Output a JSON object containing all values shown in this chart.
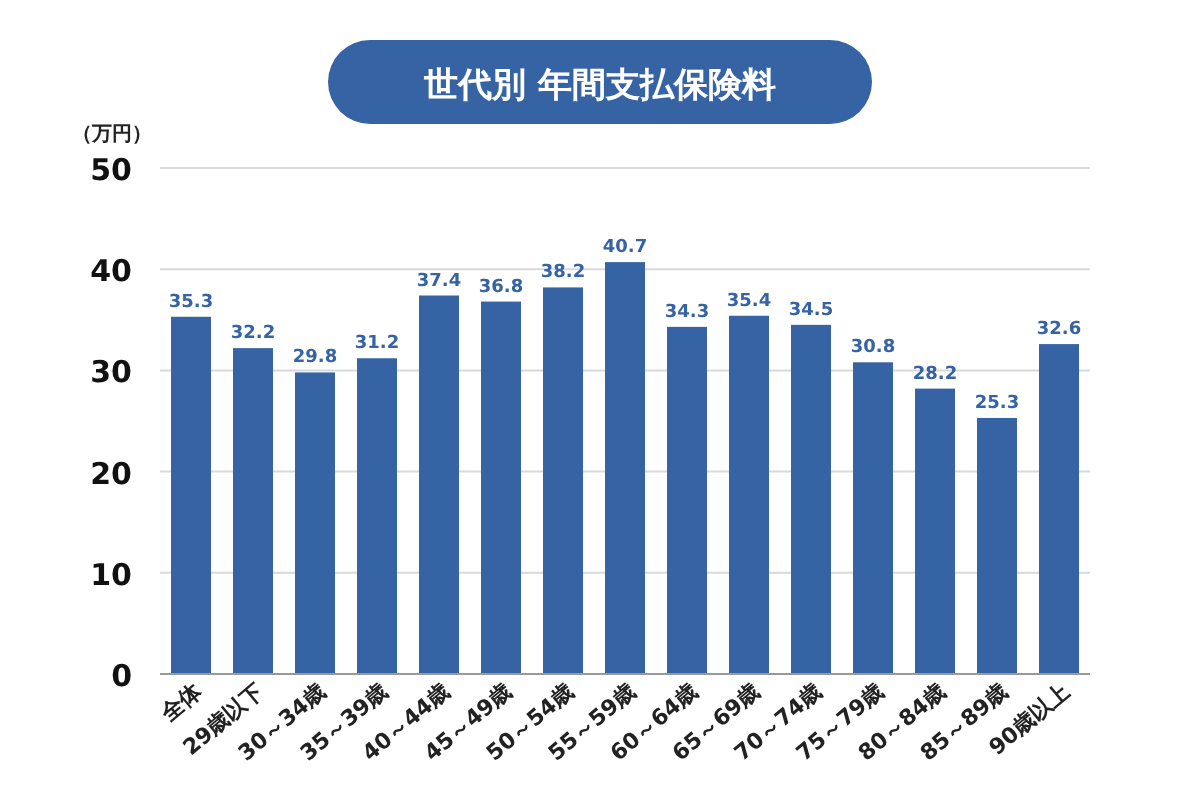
{
  "chart_data": {
    "type": "bar",
    "title": "世代別 年間支払保険料",
    "ylabel": "（万円）",
    "categories": [
      "全体",
      "29歳以下",
      "30～34歳",
      "35～39歳",
      "40～44歳",
      "45～49歳",
      "50～54歳",
      "55～59歳",
      "60～64歳",
      "65～69歳",
      "70～74歳",
      "75～79歳",
      "80～84歳",
      "85～89歳",
      "90歳以上"
    ],
    "values": [
      35.3,
      32.2,
      29.8,
      31.2,
      37.4,
      36.8,
      38.2,
      40.7,
      34.3,
      35.4,
      34.5,
      30.8,
      28.2,
      25.3,
      32.6
    ],
    "color": "#3563a3",
    "ylim": [
      0,
      50
    ],
    "yticks": [
      0,
      10,
      20,
      30,
      40,
      50
    ],
    "grid": "y",
    "data_labels": true
  }
}
